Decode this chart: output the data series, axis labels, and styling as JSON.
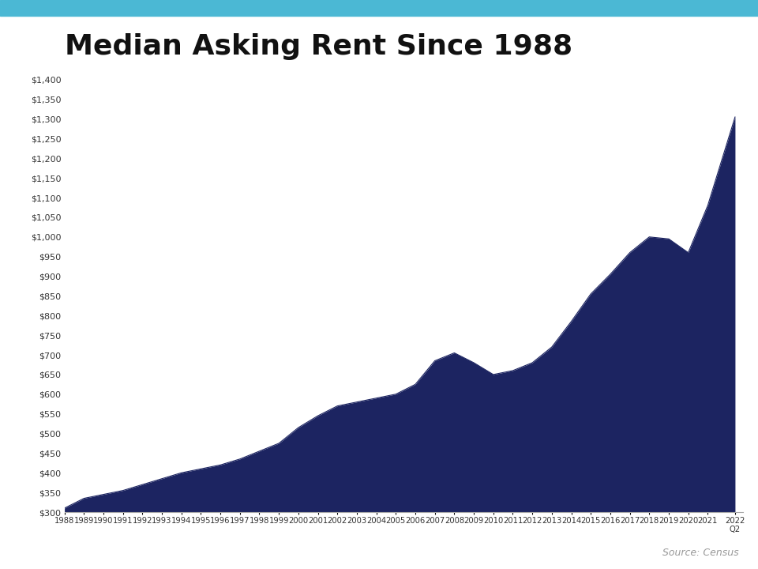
{
  "title": "Median Asking Rent Since 1988",
  "title_fontsize": 26,
  "title_fontweight": "bold",
  "source_text": "Source: Census",
  "fill_color": "#1C2461",
  "background_color": "#FFFFFF",
  "top_bar_color": "#4BB8D4",
  "years": [
    1988,
    1989,
    1990,
    1991,
    1992,
    1993,
    1994,
    1995,
    1996,
    1997,
    1998,
    1999,
    2000,
    2001,
    2002,
    2003,
    2004,
    2005,
    2006,
    2007,
    2008,
    2009,
    2010,
    2011,
    2012,
    2013,
    2014,
    2015,
    2016,
    2017,
    2018,
    2019,
    2020,
    2021,
    2022.4
  ],
  "year_labels": [
    "1988",
    "1989",
    "1990",
    "1991",
    "1992",
    "1993",
    "1994",
    "1995",
    "1996",
    "1997",
    "1998",
    "1999",
    "2000",
    "2001",
    "2002",
    "2003",
    "2004",
    "2005",
    "2006",
    "2007",
    "2008",
    "2009",
    "2010",
    "2011",
    "2012",
    "2013",
    "2014",
    "2015",
    "2016",
    "2017",
    "2018",
    "2019",
    "2020",
    "2021",
    "2022\nQ2"
  ],
  "values": [
    310,
    335,
    345,
    355,
    370,
    385,
    400,
    410,
    420,
    435,
    455,
    475,
    515,
    545,
    570,
    580,
    590,
    600,
    625,
    685,
    705,
    680,
    650,
    660,
    680,
    720,
    785,
    855,
    905,
    960,
    1000,
    995,
    960,
    1080,
    1305
  ],
  "ylim": [
    300,
    1400
  ],
  "yticks": [
    300,
    350,
    400,
    450,
    500,
    550,
    600,
    650,
    700,
    750,
    800,
    850,
    900,
    950,
    1000,
    1050,
    1100,
    1150,
    1200,
    1250,
    1300,
    1350,
    1400
  ],
  "ytick_labels": [
    "$300",
    "$350",
    "$400",
    "$450",
    "$500",
    "$550",
    "$600",
    "$650",
    "$700",
    "$750",
    "$800",
    "$850",
    "$900",
    "$950",
    "$1,000",
    "$1,050",
    "$1,100",
    "$1,150",
    "$1,200",
    "$1,250",
    "$1,300",
    "$1,350",
    "$1,400"
  ]
}
